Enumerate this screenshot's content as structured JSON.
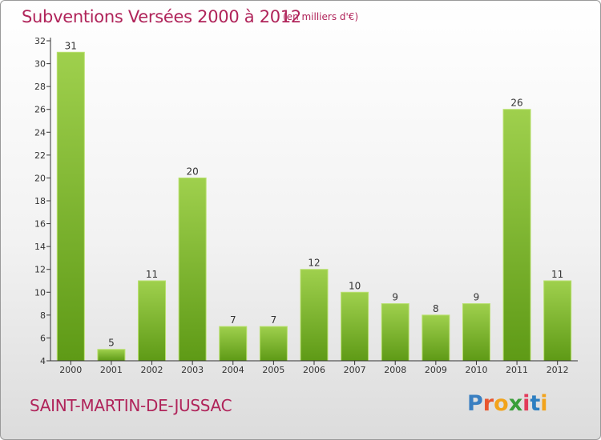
{
  "header": {
    "title": "Subventions Versées 2000 à 2012",
    "unit": "(en milliers d'€)"
  },
  "footer": {
    "commune": "SAINT-MARTIN-DE-JUSSAC",
    "logo": {
      "text": "Proxiti",
      "letters": [
        "P",
        "r",
        "o",
        "x",
        "i",
        "t",
        "i"
      ],
      "colors": [
        "#3a7fc1",
        "#e8562e",
        "#f2a31b",
        "#3a9e3a",
        "#e23b5a",
        "#2d7fc1",
        "#f2a31b"
      ]
    }
  },
  "chart_data": {
    "type": "bar",
    "categories": [
      "2000",
      "2001",
      "2002",
      "2003",
      "2004",
      "2005",
      "2006",
      "2007",
      "2008",
      "2009",
      "2010",
      "2011",
      "2012"
    ],
    "values": [
      31,
      5,
      11,
      20,
      7,
      7,
      12,
      10,
      9,
      8,
      9,
      26,
      11
    ],
    "data_labels": [
      "31",
      "5",
      "11",
      "20",
      "7",
      "7",
      "12",
      "10",
      "9",
      "8",
      "9",
      "26",
      "11"
    ],
    "ylim": [
      4,
      32
    ],
    "yticks": [
      4,
      6,
      8,
      10,
      12,
      14,
      16,
      18,
      20,
      22,
      24,
      26,
      28,
      30,
      32
    ],
    "grid": false,
    "colors": {
      "bar_top": "#9fd04d",
      "bar_bottom": "#5e9a16",
      "title": "#b0245a"
    }
  }
}
